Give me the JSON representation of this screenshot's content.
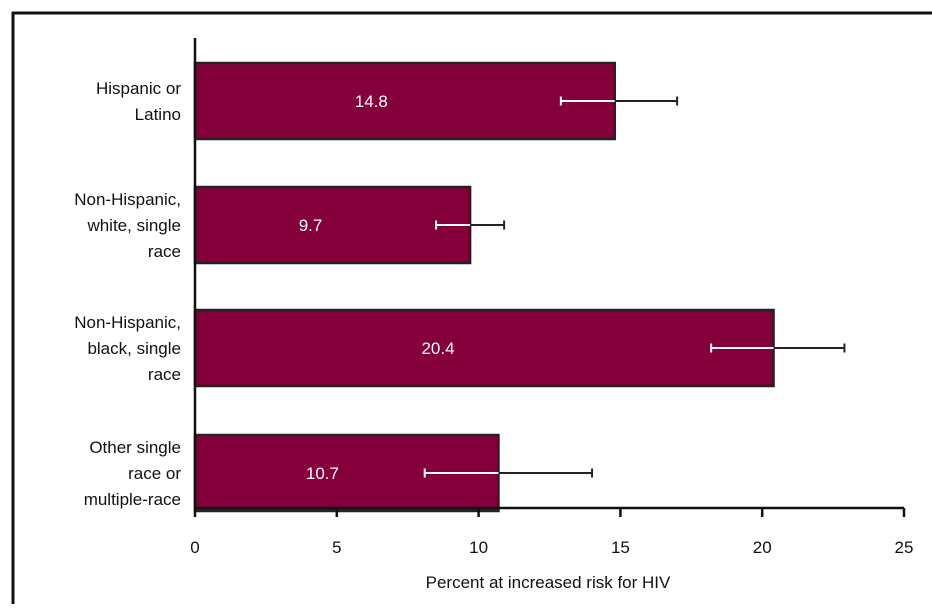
{
  "chart_data": {
    "type": "bar",
    "orientation": "horizontal",
    "categories": [
      "Hispanic or Latino",
      "Non-Hispanic, white, single race",
      "Non-Hispanic, black, single race",
      "Other single race or multiple-race"
    ],
    "category_label_lines": [
      [
        "Hispanic or",
        "Latino"
      ],
      [
        "Non-Hispanic,",
        "white, single",
        "race"
      ],
      [
        "Non-Hispanic,",
        "black, single",
        "race"
      ],
      [
        "Other single",
        "race or",
        "multiple-race"
      ]
    ],
    "values": [
      14.8,
      9.7,
      20.4,
      10.7
    ],
    "data_labels": [
      "14.8",
      "9.7",
      "20.4",
      "10.7"
    ],
    "error_bars": [
      {
        "low": 12.9,
        "high": 17.0
      },
      {
        "low": 8.5,
        "high": 10.9
      },
      {
        "low": 18.2,
        "high": 22.9
      },
      {
        "low": 8.1,
        "high": 14.0
      }
    ],
    "xlabel": "Percent at increased risk for HIV",
    "xlim": [
      0,
      25
    ],
    "xticks": [
      0,
      5,
      10,
      15,
      20,
      25
    ],
    "xtick_labels": [
      "0",
      "5",
      "10",
      "15",
      "20",
      "25"
    ],
    "grid": false,
    "colors": {
      "bar_fill": "#85003a",
      "bar_stroke": "#222222",
      "error_bar_inside": "#ffffff",
      "error_bar_outside": "#222222",
      "axis": "#111111",
      "frame": "#111111"
    }
  }
}
